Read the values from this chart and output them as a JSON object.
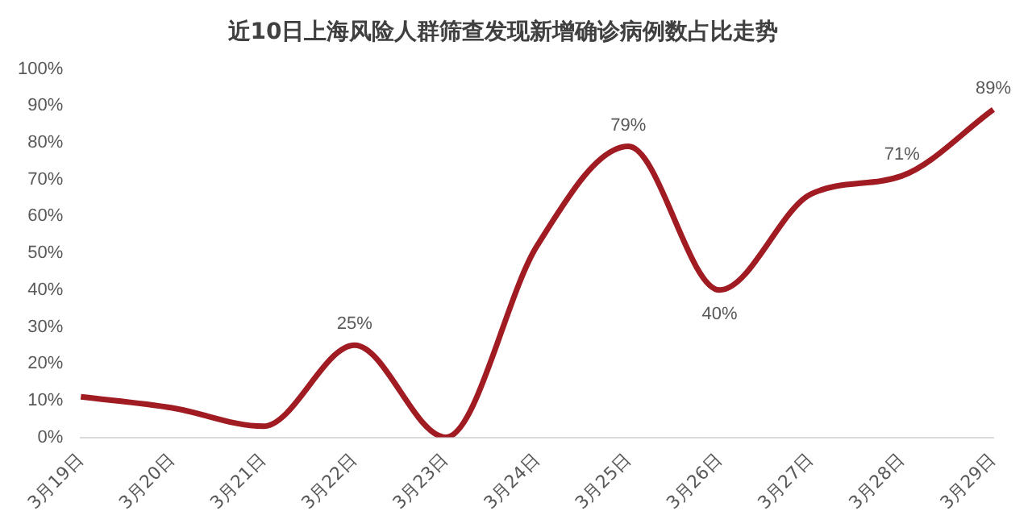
{
  "chart_data": {
    "type": "line",
    "title": "近10日上海风险人群筛查发现新增确诊病例数占比走势",
    "categories": [
      "3月19日",
      "3月20日",
      "3月21日",
      "3月22日",
      "3月23日",
      "3月24日",
      "3月25日",
      "3月26日",
      "3月27日",
      "3月28日",
      "3月29日"
    ],
    "series": [
      {
        "color": "#a01c22",
        "values": [
          11,
          8,
          3,
          25,
          0,
          52,
          79,
          40,
          66,
          71,
          89
        ],
        "value_labels": [
          null,
          null,
          null,
          "25%",
          null,
          null,
          "79%",
          "40%",
          null,
          "71%",
          "89%"
        ]
      }
    ],
    "ylim": [
      0,
      100
    ],
    "yticks": [
      {
        "value": 0,
        "label": "0%"
      },
      {
        "value": 10,
        "label": "10%"
      },
      {
        "value": 20,
        "label": "20%"
      },
      {
        "value": 30,
        "label": "30%"
      },
      {
        "value": 40,
        "label": "40%"
      },
      {
        "value": 50,
        "label": "50%"
      },
      {
        "value": 60,
        "label": "60%"
      },
      {
        "value": 70,
        "label": "70%"
      },
      {
        "value": 80,
        "label": "80%"
      },
      {
        "value": 90,
        "label": "90%"
      },
      {
        "value": 100,
        "label": "100%"
      }
    ],
    "grid": false,
    "legend": false,
    "marker": "none",
    "line_style": "solid"
  }
}
